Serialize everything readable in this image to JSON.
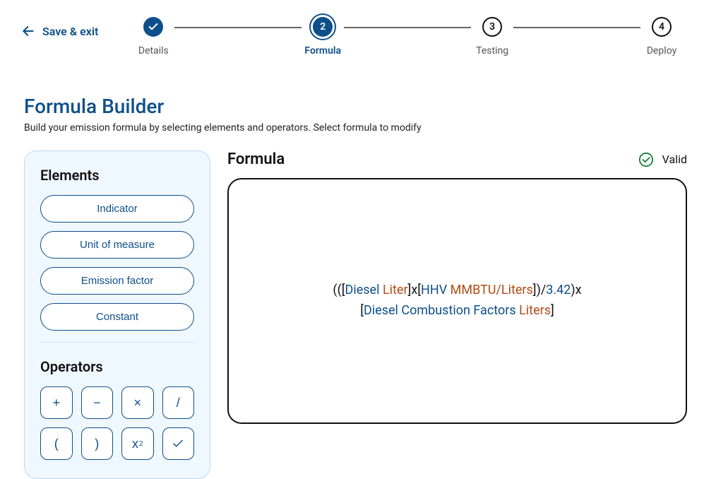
{
  "header": {
    "save_exit": "Save & exit"
  },
  "stepper": {
    "steps": [
      {
        "label": "Details",
        "state": "done"
      },
      {
        "label": "Formula",
        "state": "active",
        "num": "2"
      },
      {
        "label": "Testing",
        "state": "pending",
        "num": "3"
      },
      {
        "label": "Deploy",
        "state": "pending",
        "num": "4"
      }
    ]
  },
  "page": {
    "title": "Formula Builder",
    "subtitle": "Build your emission formula by selecting elements and operators. Select formula to modify"
  },
  "elements_panel": {
    "title": "Elements",
    "buttons": [
      "Indicator",
      "Unit of measure",
      "Emission factor",
      "Constant"
    ],
    "ops_title": "Operators",
    "operators": [
      "+",
      "−",
      "×",
      "/",
      "(",
      ")",
      "x²",
      "✓"
    ]
  },
  "formula_panel": {
    "title": "Formula",
    "status_text": "Valid",
    "status_color": "#1a7f37",
    "tokens": [
      {
        "t": "((",
        "c": "black"
      },
      {
        "t": "[",
        "c": "black"
      },
      {
        "t": "Diesel ",
        "c": "blue"
      },
      {
        "t": "Liter",
        "c": "brown"
      },
      {
        "t": "]",
        "c": "black"
      },
      {
        "t": "x",
        "c": "black"
      },
      {
        "t": "[",
        "c": "black"
      },
      {
        "t": "HHV ",
        "c": "blue"
      },
      {
        "t": "MMBTU/Liters",
        "c": "brown"
      },
      {
        "t": "]",
        "c": "black"
      },
      {
        "t": ")/",
        "c": "black"
      },
      {
        "t": "3.42",
        "c": "blue"
      },
      {
        "t": ")x",
        "c": "black"
      },
      {
        "br": true
      },
      {
        "t": "[",
        "c": "black"
      },
      {
        "t": "Diesel Combustion Factors ",
        "c": "blue"
      },
      {
        "t": "Liters",
        "c": "brown"
      },
      {
        "t": "]",
        "c": "black"
      }
    ]
  },
  "colors": {
    "primary": "#0d4f8b",
    "panel_bg": "#f0f8ff",
    "panel_border": "#b8d9f2",
    "accent_brown": "#b24b14",
    "valid": "#1a7f37"
  }
}
